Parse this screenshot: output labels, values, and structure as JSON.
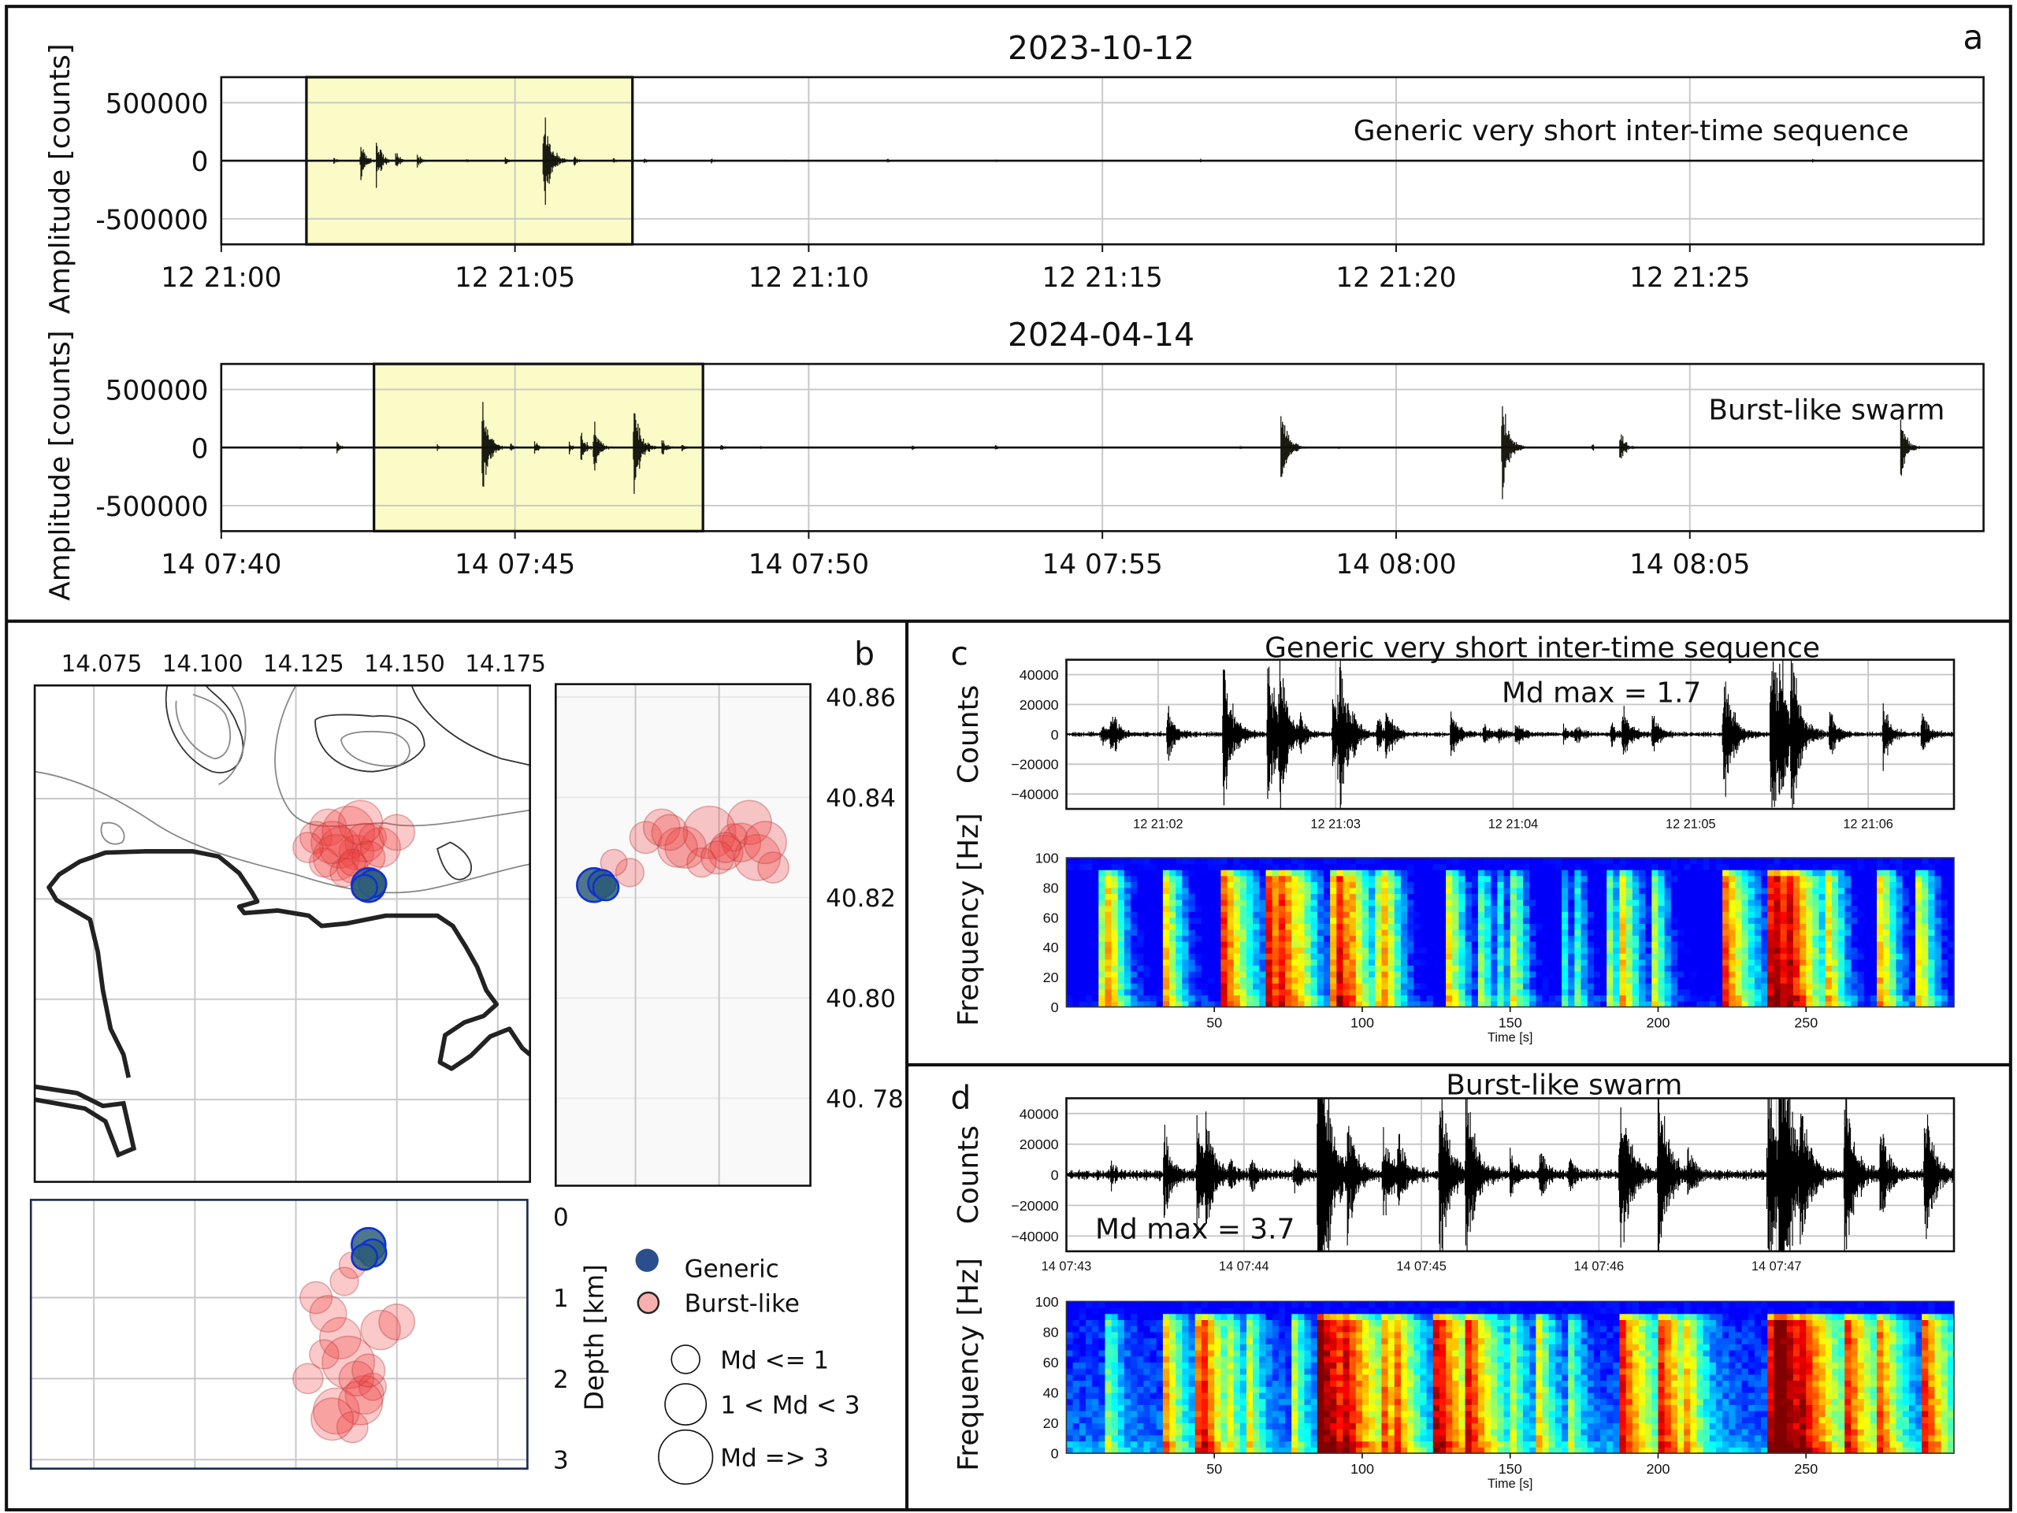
{
  "panel_labels": {
    "a": "a",
    "b": "b",
    "c": "c",
    "d": "d"
  },
  "colors": {
    "highlight": "#fbfbc8",
    "trace": "#111111",
    "burst_fill": "#f03c3c",
    "generic_fill": "#2f5f78",
    "generic_edge": "#1030d0"
  },
  "chart_data": [
    {
      "id": "a_top",
      "type": "line",
      "title": "2023-10-12",
      "ylabel": "Amplitude [counts]",
      "annotation": "Generic very short inter-time sequence",
      "xlim": [
        "21:00:00",
        "21:30:00"
      ],
      "x_ticks": [
        {
          "t": "21:00:00",
          "label": "12 21:00"
        },
        {
          "t": "21:05:00",
          "label": "12 21:05"
        },
        {
          "t": "21:10:00",
          "label": "12 21:10"
        },
        {
          "t": "21:15:00",
          "label": "12 21:15"
        },
        {
          "t": "21:20:00",
          "label": "12 21:20"
        },
        {
          "t": "21:25:00",
          "label": "12 21:25"
        }
      ],
      "ylim": [
        -720000,
        720000
      ],
      "y_ticks": [
        {
          "v": 500000,
          "label": "500000"
        },
        {
          "v": 0,
          "label": "0"
        },
        {
          "v": -500000,
          "label": "-500000"
        }
      ],
      "highlight": {
        "start": "21:01:27",
        "end": "21:07:00"
      },
      "grid": true,
      "events": [
        {
          "time": "21:01:55",
          "amplitude": 30000
        },
        {
          "time": "21:02:22",
          "amplitude": 200000
        },
        {
          "time": "21:02:38",
          "amplitude": 240000
        },
        {
          "time": "21:02:58",
          "amplitude": 90000
        },
        {
          "time": "21:03:20",
          "amplitude": 70000
        },
        {
          "time": "21:04:10",
          "amplitude": 30000
        },
        {
          "time": "21:04:50",
          "amplitude": 40000
        },
        {
          "time": "21:05:29",
          "amplitude": 640000
        },
        {
          "time": "21:06:00",
          "amplitude": 50000
        },
        {
          "time": "21:06:40",
          "amplitude": 30000
        },
        {
          "time": "21:07:12",
          "amplitude": 25000
        },
        {
          "time": "21:08:20",
          "amplitude": 25000
        },
        {
          "time": "21:09:35",
          "amplitude": 15000
        },
        {
          "time": "21:11:20",
          "amplitude": 30000
        },
        {
          "time": "21:13:10",
          "amplitude": 15000
        },
        {
          "time": "21:16:40",
          "amplitude": 20000
        },
        {
          "time": "21:27:05",
          "amplitude": 25000
        }
      ]
    },
    {
      "id": "a_bottom",
      "type": "line",
      "title": "2024-04-14",
      "ylabel": "Amplitude [counts]",
      "annotation": "Burst-like swarm",
      "xlim": [
        "07:40:00",
        "08:10:00"
      ],
      "x_ticks": [
        {
          "t": "07:40:00",
          "label": "14 07:40"
        },
        {
          "t": "07:45:00",
          "label": "14 07:45"
        },
        {
          "t": "07:50:00",
          "label": "14 07:50"
        },
        {
          "t": "07:55:00",
          "label": "14 07:55"
        },
        {
          "t": "08:00:00",
          "label": "14 08:00"
        },
        {
          "t": "08:05:00",
          "label": "14 08:05"
        }
      ],
      "ylim": [
        -720000,
        720000
      ],
      "y_ticks": [
        {
          "v": 500000,
          "label": "500000"
        },
        {
          "v": 0,
          "label": "0"
        },
        {
          "v": -500000,
          "label": "-500000"
        }
      ],
      "highlight": {
        "start": "07:42:36",
        "end": "07:48:12"
      },
      "grid": true,
      "events": [
        {
          "time": "07:41:20",
          "amplitude": 20000
        },
        {
          "time": "07:41:58",
          "amplitude": 60000
        },
        {
          "time": "07:43:40",
          "amplitude": 40000
        },
        {
          "time": "07:44:26",
          "amplitude": 600000
        },
        {
          "time": "07:44:55",
          "amplitude": 60000
        },
        {
          "time": "07:45:20",
          "amplitude": 70000
        },
        {
          "time": "07:45:55",
          "amplitude": 60000
        },
        {
          "time": "07:46:07",
          "amplitude": 180000
        },
        {
          "time": "07:46:20",
          "amplitude": 300000
        },
        {
          "time": "07:47:01",
          "amplitude": 590000
        },
        {
          "time": "07:47:30",
          "amplitude": 90000
        },
        {
          "time": "07:47:50",
          "amplitude": 50000
        },
        {
          "time": "07:48:30",
          "amplitude": 40000
        },
        {
          "time": "07:49:10",
          "amplitude": 25000
        },
        {
          "time": "07:51:45",
          "amplitude": 40000
        },
        {
          "time": "07:53:10",
          "amplitude": 30000
        },
        {
          "time": "07:57:20",
          "amplitude": 30000
        },
        {
          "time": "07:58:02",
          "amplitude": 600000
        },
        {
          "time": "07:59:00",
          "amplitude": 30000
        },
        {
          "time": "08:01:48",
          "amplitude": 580000
        },
        {
          "time": "08:03:20",
          "amplitude": 40000
        },
        {
          "time": "08:03:48",
          "amplitude": 200000
        },
        {
          "time": "08:08:35",
          "amplitude": 360000
        }
      ]
    },
    {
      "id": "b_map",
      "type": "scatter",
      "lon_ticks": [
        {
          "v": 14.075,
          "label": "14.075"
        },
        {
          "v": 14.1,
          "label": "14.100"
        },
        {
          "v": 14.125,
          "label": "14.125"
        },
        {
          "v": 14.15,
          "label": "14.150"
        },
        {
          "v": 14.175,
          "label": "14.175"
        }
      ],
      "lat_ticks": [
        {
          "v": 40.86,
          "label": "40.86"
        },
        {
          "v": 40.84,
          "label": "40.84"
        },
        {
          "v": 40.82,
          "label": "40.82"
        },
        {
          "v": 40.8,
          "label": "40.80"
        },
        {
          "v": 40.78,
          "label": "40. 78"
        }
      ],
      "depth_ticks": [
        {
          "v": 0,
          "label": "0"
        },
        {
          "v": 1,
          "label": "1"
        },
        {
          "v": 2,
          "label": "2"
        },
        {
          "v": 3,
          "label": "3"
        }
      ],
      "depth_label": "Depth [km]",
      "legend": {
        "types": [
          {
            "key": "generic",
            "label": "Generic"
          },
          {
            "key": "burst",
            "label": "Burst-like"
          }
        ],
        "sizes": [
          {
            "md": 1,
            "label": "Md <= 1"
          },
          {
            "md": 2,
            "label": "1 < Md < 3"
          },
          {
            "md": 3,
            "label": "Md => 3"
          }
        ]
      },
      "events": [
        {
          "type": "burst",
          "lon": 14.13,
          "lat": 40.832,
          "depth_km": 1.0,
          "md": 1.5
        },
        {
          "type": "burst",
          "lon": 14.133,
          "lat": 40.834,
          "depth_km": 1.2,
          "md": 2.0
        },
        {
          "type": "burst",
          "lon": 14.136,
          "lat": 40.83,
          "depth_km": 1.5,
          "md": 2.5
        },
        {
          "type": "burst",
          "lon": 14.138,
          "lat": 40.833,
          "depth_km": 1.8,
          "md": 3.7
        },
        {
          "type": "burst",
          "lon": 14.14,
          "lat": 40.829,
          "depth_km": 2.0,
          "md": 1.8
        },
        {
          "type": "burst",
          "lon": 14.142,
          "lat": 40.831,
          "depth_km": 2.2,
          "md": 2.2
        },
        {
          "type": "burst",
          "lon": 14.135,
          "lat": 40.828,
          "depth_km": 2.4,
          "md": 3.0
        },
        {
          "type": "burst",
          "lon": 14.139,
          "lat": 40.826,
          "depth_km": 2.6,
          "md": 1.4
        },
        {
          "type": "burst",
          "lon": 14.144,
          "lat": 40.832,
          "depth_km": 2.1,
          "md": 1.0
        },
        {
          "type": "burst",
          "lon": 14.146,
          "lat": 40.83,
          "depth_km": 1.4,
          "md": 2.3
        },
        {
          "type": "burst",
          "lon": 14.132,
          "lat": 40.827,
          "depth_km": 1.7,
          "md": 1.2
        },
        {
          "type": "burst",
          "lon": 14.141,
          "lat": 40.835,
          "depth_km": 2.3,
          "md": 2.8
        },
        {
          "type": "burst",
          "lon": 14.137,
          "lat": 40.825,
          "depth_km": 0.8,
          "md": 1.1
        },
        {
          "type": "burst",
          "lon": 14.134,
          "lat": 40.831,
          "depth_km": 2.5,
          "md": 2.6
        },
        {
          "type": "burst",
          "lon": 14.143,
          "lat": 40.828,
          "depth_km": 1.9,
          "md": 1.6
        },
        {
          "type": "burst",
          "lon": 14.15,
          "lat": 40.833,
          "depth_km": 1.3,
          "md": 1.9
        },
        {
          "type": "burst",
          "lon": 14.128,
          "lat": 40.83,
          "depth_km": 2.0,
          "md": 1.3
        },
        {
          "type": "burst",
          "lon": 14.139,
          "lat": 40.827,
          "depth_km": 0.6,
          "md": 0.9
        },
        {
          "type": "generic",
          "lon": 14.143,
          "lat": 40.8225,
          "depth_km": 0.35,
          "md": 1.7
        },
        {
          "type": "generic",
          "lon": 14.144,
          "lat": 40.8228,
          "depth_km": 0.45,
          "md": 1.0
        },
        {
          "type": "generic",
          "lon": 14.142,
          "lat": 40.822,
          "depth_km": 0.5,
          "md": 0.8
        }
      ]
    },
    {
      "id": "c",
      "type": "line",
      "title": "Generic very short inter-time sequence",
      "annotation": "Md max = 1.7",
      "waveform": {
        "ylabel": "Counts",
        "ylim": [
          -50000,
          50000
        ],
        "y_ticks": [
          {
            "v": 40000,
            "label": "40000"
          },
          {
            "v": 20000,
            "label": "20000"
          },
          {
            "v": 0,
            "label": "0"
          },
          {
            "v": -20000,
            "label": "−20000"
          },
          {
            "v": -40000,
            "label": "−40000"
          }
        ],
        "x_ticks": [
          {
            "t_s": 31,
            "label": "12 21:02"
          },
          {
            "t_s": 91,
            "label": "12 21:03"
          },
          {
            "t_s": 151,
            "label": "12 21:04"
          },
          {
            "t_s": 211,
            "label": "12 21:05"
          },
          {
            "t_s": 271,
            "label": "12 21:06"
          }
        ]
      },
      "spectrogram": {
        "type": "heatmap",
        "ylabel": "Frequency [Hz]",
        "xlabel": "Time [s]",
        "xlim": [
          0,
          300
        ],
        "ylim": [
          0,
          100
        ],
        "colormap": "jet",
        "y_ticks": [
          0,
          20,
          40,
          60,
          80,
          100
        ],
        "x_ticks": [
          50,
          100,
          150,
          200,
          250
        ]
      },
      "background_noise": 1500,
      "events": [
        {
          "time_s": 12,
          "amplitude": 12000
        },
        {
          "time_s": 15,
          "amplitude": 22000
        },
        {
          "time_s": 34,
          "amplitude": 25000
        },
        {
          "time_s": 53,
          "amplitude": 60000
        },
        {
          "time_s": 68,
          "amplitude": 70000
        },
        {
          "time_s": 72,
          "amplitude": 50000
        },
        {
          "time_s": 79,
          "amplitude": 10000
        },
        {
          "time_s": 90,
          "amplitude": 30000
        },
        {
          "time_s": 92,
          "amplitude": 60000
        },
        {
          "time_s": 97,
          "amplitude": 12000
        },
        {
          "time_s": 105,
          "amplitude": 15000
        },
        {
          "time_s": 108,
          "amplitude": 22000
        },
        {
          "time_s": 130,
          "amplitude": 20000
        },
        {
          "time_s": 141,
          "amplitude": 9000
        },
        {
          "time_s": 146,
          "amplitude": 7000
        },
        {
          "time_s": 152,
          "amplitude": 12000
        },
        {
          "time_s": 168,
          "amplitude": 6000
        },
        {
          "time_s": 172,
          "amplitude": 9000
        },
        {
          "time_s": 184,
          "amplitude": 10000
        },
        {
          "time_s": 188,
          "amplitude": 24000
        },
        {
          "time_s": 198,
          "amplitude": 19000
        },
        {
          "time_s": 222,
          "amplitude": 60000
        },
        {
          "time_s": 238,
          "amplitude": 75000
        },
        {
          "time_s": 241,
          "amplitude": 50000
        },
        {
          "time_s": 245,
          "amplitude": 50000
        },
        {
          "time_s": 258,
          "amplitude": 20000
        },
        {
          "time_s": 276,
          "amplitude": 24000
        },
        {
          "time_s": 289,
          "amplitude": 19000
        }
      ]
    },
    {
      "id": "d",
      "type": "line",
      "title": "Burst-like swarm",
      "annotation": "Md max = 3.7",
      "waveform": {
        "ylabel": "Counts",
        "ylim": [
          -50000,
          50000
        ],
        "y_ticks": [
          {
            "v": 40000,
            "label": "40000"
          },
          {
            "v": 20000,
            "label": "20000"
          },
          {
            "v": 0,
            "label": "0"
          },
          {
            "v": -20000,
            "label": "−20000"
          },
          {
            "v": -40000,
            "label": "−40000"
          }
        ],
        "x_ticks": [
          {
            "t_s": 0,
            "label": "14 07:43"
          },
          {
            "t_s": 60,
            "label": "14 07:44"
          },
          {
            "t_s": 120,
            "label": "14 07:45"
          },
          {
            "t_s": 180,
            "label": "14 07:46"
          },
          {
            "t_s": 240,
            "label": "14 07:47"
          }
        ]
      },
      "spectrogram": {
        "type": "heatmap",
        "ylabel": "Frequency [Hz]",
        "xlabel": "Time [s]",
        "xlim": [
          0,
          300
        ],
        "ylim": [
          0,
          100
        ],
        "colormap": "jet",
        "y_ticks": [
          0,
          20,
          40,
          60,
          80,
          100
        ],
        "x_ticks": [
          50,
          100,
          150,
          200,
          250
        ]
      },
      "background_noise": 3000,
      "events": [
        {
          "time_s": 15,
          "amplitude": 9000
        },
        {
          "time_s": 33,
          "amplitude": 36000
        },
        {
          "time_s": 44,
          "amplitude": 48000
        },
        {
          "time_s": 47,
          "amplitude": 35000
        },
        {
          "time_s": 55,
          "amplitude": 12000
        },
        {
          "time_s": 62,
          "amplitude": 14000
        },
        {
          "time_s": 77,
          "amplitude": 14000
        },
        {
          "time_s": 85,
          "amplitude": 160000
        },
        {
          "time_s": 95,
          "amplitude": 40000
        },
        {
          "time_s": 107,
          "amplitude": 38000
        },
        {
          "time_s": 112,
          "amplitude": 30000
        },
        {
          "time_s": 126,
          "amplitude": 80000
        },
        {
          "time_s": 135,
          "amplitude": 70000
        },
        {
          "time_s": 150,
          "amplitude": 15000
        },
        {
          "time_s": 160,
          "amplitude": 20000
        },
        {
          "time_s": 170,
          "amplitude": 12000
        },
        {
          "time_s": 187,
          "amplitude": 80000
        },
        {
          "time_s": 200,
          "amplitude": 75000
        },
        {
          "time_s": 210,
          "amplitude": 18000
        },
        {
          "time_s": 237,
          "amplitude": 90000
        },
        {
          "time_s": 241,
          "amplitude": 140000
        },
        {
          "time_s": 248,
          "amplitude": 50000
        },
        {
          "time_s": 263,
          "amplitude": 70000
        },
        {
          "time_s": 275,
          "amplitude": 40000
        },
        {
          "time_s": 290,
          "amplitude": 60000
        }
      ]
    }
  ]
}
